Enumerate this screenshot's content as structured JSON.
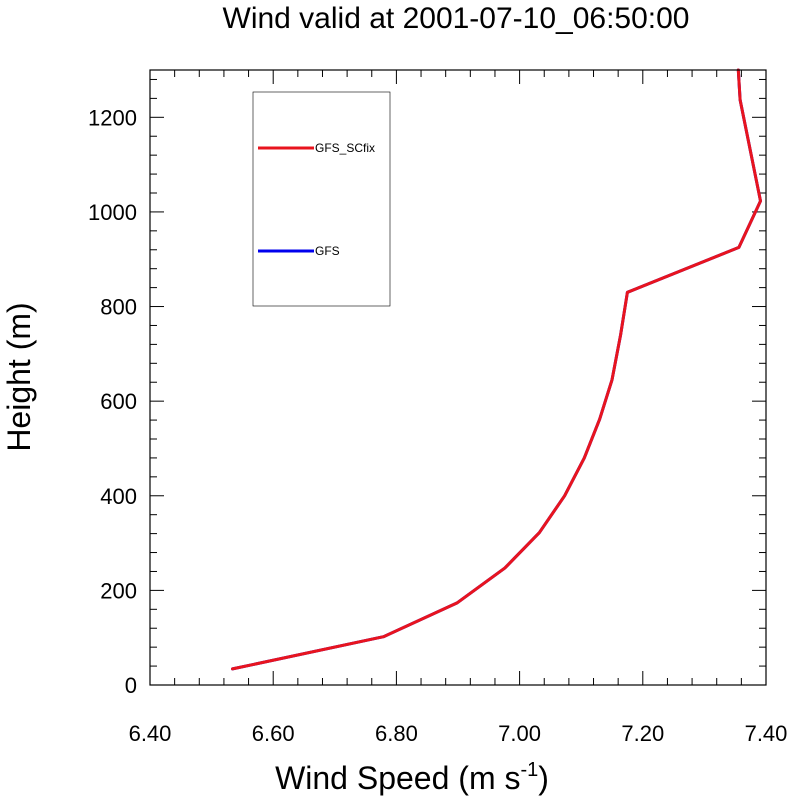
{
  "chart_data": {
    "type": "line",
    "title": "Wind valid at 2001-07-10_06:50:00",
    "xlabel": "Wind Speed (m s",
    "xlabel_sup": "-1",
    "xlabel_end": ")",
    "ylabel": "Height (m)",
    "xlim": [
      6.4,
      7.4
    ],
    "ylim": [
      0,
      1300
    ],
    "xticks": [
      6.4,
      6.6,
      6.8,
      7.0,
      7.2,
      7.4
    ],
    "xtick_labels": [
      "6.40",
      "6.60",
      "6.80",
      "7.00",
      "7.20",
      "7.40"
    ],
    "yticks": [
      0,
      200,
      400,
      600,
      800,
      1000,
      1200
    ],
    "ytick_labels": [
      "0",
      "200",
      "400",
      "600",
      "800",
      "1000",
      "1200"
    ],
    "grid": false,
    "legend_position": "top-left",
    "series": [
      {
        "name": "GFS",
        "color": "#0000ee",
        "x": [
          6.534,
          6.779,
          6.899,
          6.976,
          7.032,
          7.073,
          7.105,
          7.13,
          7.15,
          7.164,
          7.175,
          7.356,
          7.391,
          7.358,
          7.355
        ],
        "y": [
          34,
          102,
          174,
          247,
          322,
          400,
          480,
          562,
          645,
          740,
          830,
          925,
          1023,
          1237,
          1300
        ]
      },
      {
        "name": "GFS_SCfix",
        "color": "#e8141e",
        "x": [
          6.534,
          6.779,
          6.899,
          6.976,
          7.032,
          7.073,
          7.105,
          7.13,
          7.15,
          7.164,
          7.175,
          7.356,
          7.391,
          7.358,
          7.355
        ],
        "y": [
          34,
          102,
          174,
          247,
          322,
          400,
          480,
          562,
          645,
          740,
          830,
          925,
          1023,
          1237,
          1300
        ]
      }
    ]
  }
}
